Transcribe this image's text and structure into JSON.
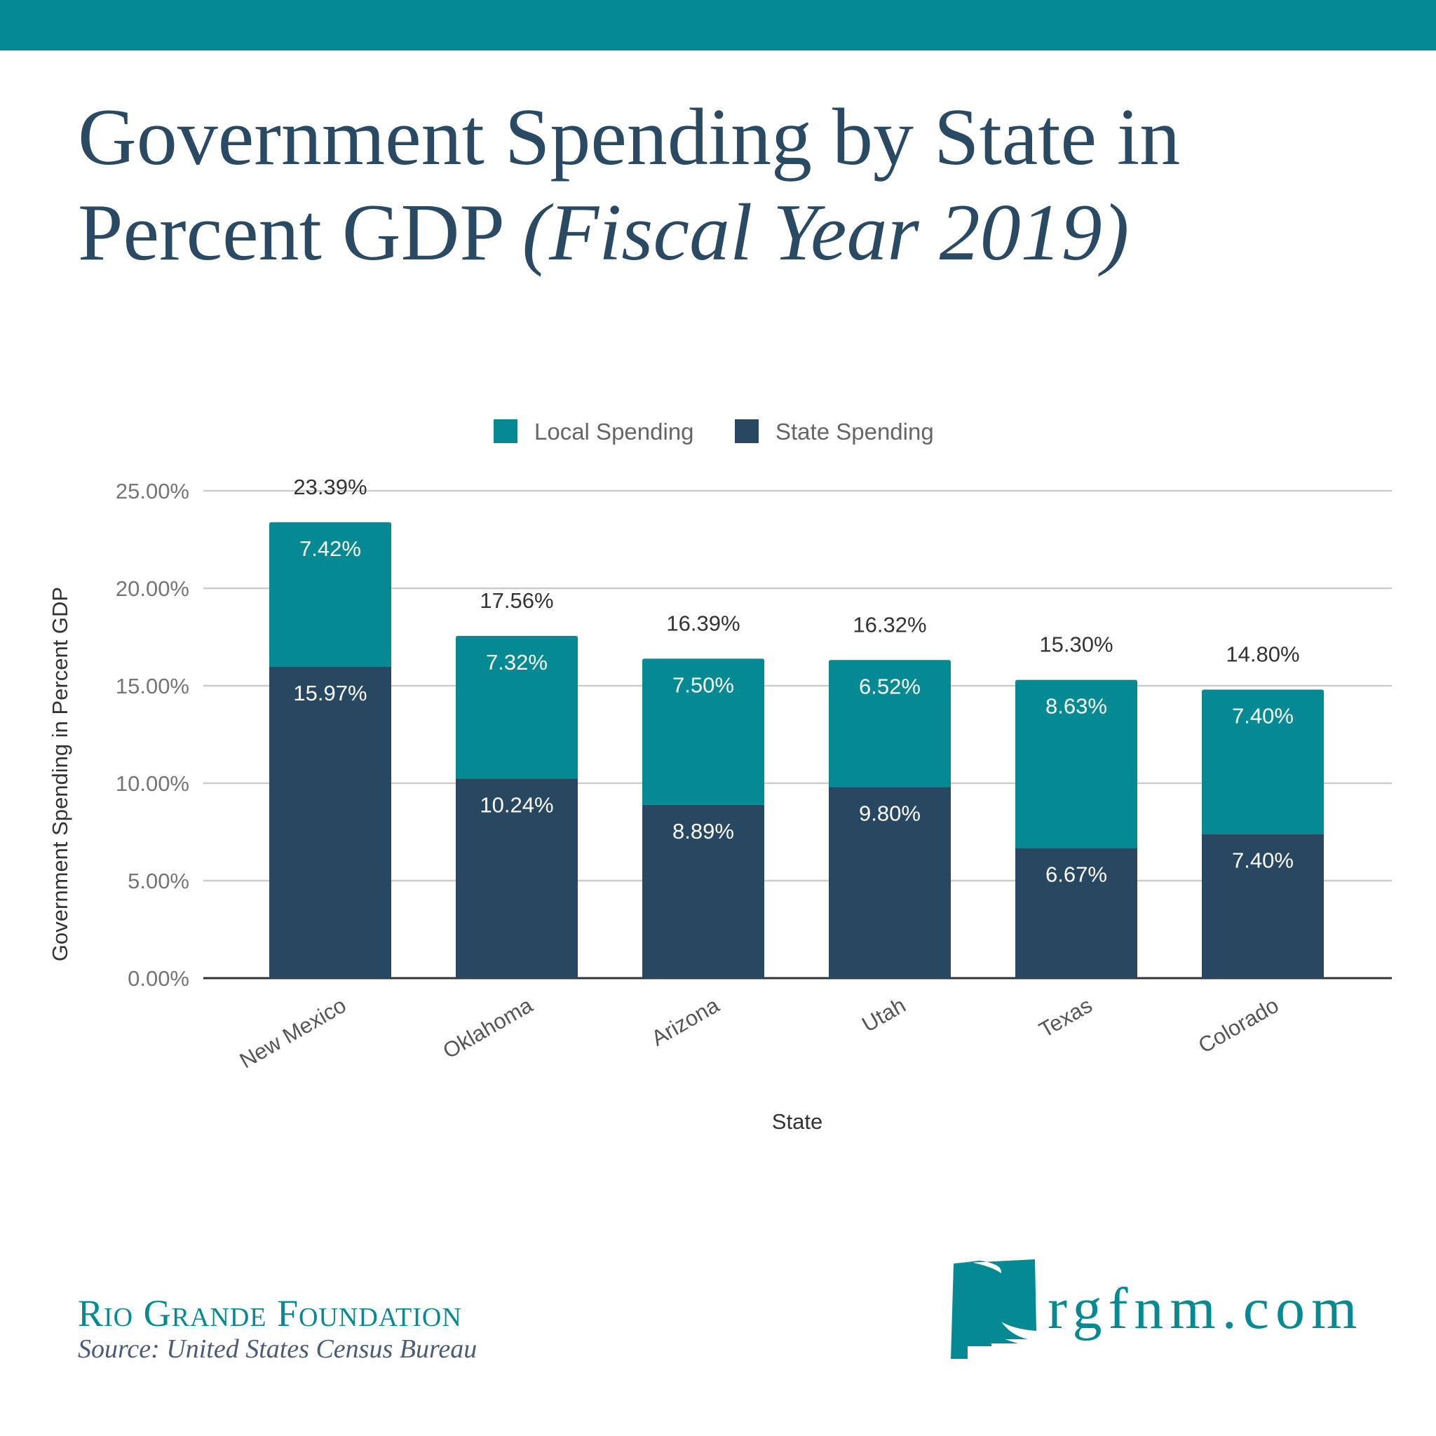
{
  "title": {
    "main": "Government Spending by State in Percent GDP",
    "italic": "(Fiscal Year 2019)"
  },
  "colors": {
    "local": "#058a93",
    "state": "#284862",
    "title": "#2a4a63",
    "grid": "#cccccc"
  },
  "chart_data": {
    "type": "bar",
    "stacked": true,
    "categories": [
      "New Mexico",
      "Oklahoma",
      "Arizona",
      "Utah",
      "Texas",
      "Colorado"
    ],
    "series": [
      {
        "name": "State Spending",
        "values": [
          15.97,
          10.24,
          8.89,
          9.8,
          6.67,
          7.4
        ],
        "labels": [
          "15.97%",
          "10.24%",
          "8.89%",
          "9.80%",
          "6.67%",
          "7.40%"
        ]
      },
      {
        "name": "Local Spending",
        "values": [
          7.42,
          7.32,
          7.5,
          6.52,
          8.63,
          7.4
        ],
        "labels": [
          "7.42%",
          "7.32%",
          "7.50%",
          "6.52%",
          "8.63%",
          "7.40%"
        ]
      }
    ],
    "totals": [
      "23.39%",
      "17.56%",
      "16.39%",
      "16.32%",
      "15.30%",
      "14.80%"
    ],
    "total_values": [
      23.39,
      17.56,
      16.39,
      16.32,
      15.3,
      14.8
    ],
    "legend": [
      "Local Spending",
      "State Spending"
    ],
    "legend_position": "top",
    "xlabel": "State",
    "ylabel": "Government Spending in Percent GDP",
    "yticks": [
      "0.00%",
      "5.00%",
      "10.00%",
      "15.00%",
      "20.00%",
      "25.00%"
    ],
    "ytick_values": [
      0,
      5,
      10,
      15,
      20,
      25
    ],
    "ylim": [
      0,
      25
    ],
    "grid": true
  },
  "footer": {
    "org": "Rio Grande Foundation",
    "source": "Source: United States Census Bureau",
    "website": "rgfnm.com"
  }
}
